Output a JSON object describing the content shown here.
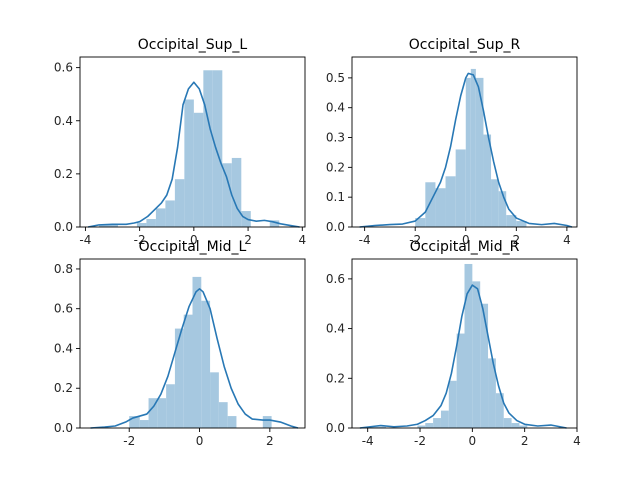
{
  "colors": {
    "bar": "#a6c8e0",
    "kde": "#2878b5",
    "axis": "#000000"
  },
  "chart_data": [
    {
      "type": "bar",
      "title": "Occipital_Sup_L",
      "xlim": [
        -4.2,
        4.1
      ],
      "ylim": [
        0,
        0.64
      ],
      "xticks": [
        -4,
        -2,
        0,
        2,
        4
      ],
      "yticks": [
        0.0,
        0.2,
        0.4,
        0.6
      ],
      "ytick_decimals": 1,
      "grid": false,
      "bins": [
        {
          "x0": -3.5,
          "x1": -3.15,
          "y": 0.008
        },
        {
          "x0": -3.15,
          "x1": -2.8,
          "y": 0.008
        },
        {
          "x0": -2.8,
          "x1": -2.45,
          "y": 0.0
        },
        {
          "x0": -2.45,
          "x1": -2.1,
          "y": 0.0
        },
        {
          "x0": -2.1,
          "x1": -1.75,
          "y": 0.015
        },
        {
          "x0": -1.75,
          "x1": -1.4,
          "y": 0.03
        },
        {
          "x0": -1.4,
          "x1": -1.05,
          "y": 0.07
        },
        {
          "x0": -1.05,
          "x1": -0.7,
          "y": 0.1
        },
        {
          "x0": -0.7,
          "x1": -0.35,
          "y": 0.18
        },
        {
          "x0": -0.35,
          "x1": 0.0,
          "y": 0.48
        },
        {
          "x0": 0.0,
          "x1": 0.35,
          "y": 0.43
        },
        {
          "x0": 0.35,
          "x1": 0.7,
          "y": 0.59
        },
        {
          "x0": 0.7,
          "x1": 1.05,
          "y": 0.59
        },
        {
          "x0": 1.05,
          "x1": 1.4,
          "y": 0.24
        },
        {
          "x0": 1.4,
          "x1": 1.75,
          "y": 0.26
        },
        {
          "x0": 1.75,
          "x1": 2.1,
          "y": 0.06
        },
        {
          "x0": 2.1,
          "x1": 2.45,
          "y": 0.0
        },
        {
          "x0": 2.45,
          "x1": 2.8,
          "y": 0.0
        },
        {
          "x0": 2.8,
          "x1": 3.15,
          "y": 0.025
        }
      ],
      "kde": [
        [
          -3.9,
          0.0
        ],
        [
          -3.5,
          0.008
        ],
        [
          -3.0,
          0.01
        ],
        [
          -2.5,
          0.01
        ],
        [
          -2.2,
          0.015
        ],
        [
          -2.0,
          0.02
        ],
        [
          -1.7,
          0.04
        ],
        [
          -1.5,
          0.06
        ],
        [
          -1.2,
          0.09
        ],
        [
          -1.0,
          0.12
        ],
        [
          -0.8,
          0.18
        ],
        [
          -0.6,
          0.3
        ],
        [
          -0.5,
          0.38
        ],
        [
          -0.4,
          0.46
        ],
        [
          -0.2,
          0.52
        ],
        [
          0.0,
          0.545
        ],
        [
          0.2,
          0.52
        ],
        [
          0.4,
          0.46
        ],
        [
          0.6,
          0.37
        ],
        [
          0.8,
          0.3
        ],
        [
          1.0,
          0.24
        ],
        [
          1.2,
          0.19
        ],
        [
          1.4,
          0.12
        ],
        [
          1.6,
          0.07
        ],
        [
          1.8,
          0.04
        ],
        [
          2.0,
          0.028
        ],
        [
          2.3,
          0.022
        ],
        [
          2.6,
          0.025
        ],
        [
          2.9,
          0.02
        ],
        [
          3.2,
          0.012
        ],
        [
          3.6,
          0.005
        ],
        [
          3.9,
          0.0
        ]
      ]
    },
    {
      "type": "bar",
      "title": "Occipital_Sup_R",
      "xlim": [
        -4.5,
        4.4
      ],
      "ylim": [
        0,
        0.57
      ],
      "xticks": [
        -4,
        -2,
        0,
        2,
        4
      ],
      "yticks": [
        0.0,
        0.1,
        0.2,
        0.3,
        0.4,
        0.5
      ],
      "ytick_decimals": 1,
      "grid": false,
      "bins": [
        {
          "x0": -4.0,
          "x1": -3.6,
          "y": 0.0
        },
        {
          "x0": -3.6,
          "x1": -3.2,
          "y": 0.0
        },
        {
          "x0": -3.2,
          "x1": -2.8,
          "y": 0.0
        },
        {
          "x0": -2.8,
          "x1": -2.4,
          "y": 0.0
        },
        {
          "x0": -2.4,
          "x1": -2.0,
          "y": 0.0
        },
        {
          "x0": -2.0,
          "x1": -1.6,
          "y": 0.03
        },
        {
          "x0": -1.6,
          "x1": -1.2,
          "y": 0.15
        },
        {
          "x0": -1.2,
          "x1": -0.8,
          "y": 0.13
        },
        {
          "x0": -0.8,
          "x1": -0.4,
          "y": 0.17
        },
        {
          "x0": -0.4,
          "x1": 0.0,
          "y": 0.26
        },
        {
          "x0": 0.0,
          "x1": 0.2,
          "y": 0.5
        },
        {
          "x0": 0.2,
          "x1": 0.4,
          "y": 0.53
        },
        {
          "x0": 0.4,
          "x1": 0.7,
          "y": 0.5
        },
        {
          "x0": 0.7,
          "x1": 1.0,
          "y": 0.31
        },
        {
          "x0": 1.0,
          "x1": 1.3,
          "y": 0.16
        },
        {
          "x0": 1.3,
          "x1": 1.6,
          "y": 0.12
        },
        {
          "x0": 1.6,
          "x1": 2.0,
          "y": 0.04
        },
        {
          "x0": 2.0,
          "x1": 2.4,
          "y": 0.02
        }
      ],
      "kde": [
        [
          -4.2,
          0.0
        ],
        [
          -3.6,
          0.005
        ],
        [
          -3.0,
          0.008
        ],
        [
          -2.5,
          0.01
        ],
        [
          -2.0,
          0.02
        ],
        [
          -1.6,
          0.05
        ],
        [
          -1.3,
          0.1
        ],
        [
          -1.0,
          0.15
        ],
        [
          -0.8,
          0.2
        ],
        [
          -0.6,
          0.27
        ],
        [
          -0.4,
          0.36
        ],
        [
          -0.2,
          0.44
        ],
        [
          0.0,
          0.5
        ],
        [
          0.1,
          0.515
        ],
        [
          0.3,
          0.51
        ],
        [
          0.5,
          0.47
        ],
        [
          0.7,
          0.39
        ],
        [
          0.9,
          0.3
        ],
        [
          1.1,
          0.22
        ],
        [
          1.3,
          0.15
        ],
        [
          1.5,
          0.1
        ],
        [
          1.7,
          0.06
        ],
        [
          2.0,
          0.03
        ],
        [
          2.5,
          0.012
        ],
        [
          3.0,
          0.008
        ],
        [
          3.5,
          0.012
        ],
        [
          4.0,
          0.005
        ],
        [
          4.2,
          0.0
        ]
      ]
    },
    {
      "type": "bar",
      "title": "Occipital_Mid_L",
      "xlim": [
        -3.4,
        3.0
      ],
      "ylim": [
        0,
        0.85
      ],
      "xticks": [
        -2,
        0,
        2
      ],
      "yticks": [
        0.0,
        0.2,
        0.4,
        0.6,
        0.8
      ],
      "ytick_decimals": 1,
      "grid": false,
      "bins": [
        {
          "x0": -2.0,
          "x1": -1.7,
          "y": 0.06
        },
        {
          "x0": -1.7,
          "x1": -1.45,
          "y": 0.04
        },
        {
          "x0": -1.45,
          "x1": -1.2,
          "y": 0.15
        },
        {
          "x0": -1.2,
          "x1": -0.95,
          "y": 0.15
        },
        {
          "x0": -0.95,
          "x1": -0.7,
          "y": 0.22
        },
        {
          "x0": -0.7,
          "x1": -0.45,
          "y": 0.5
        },
        {
          "x0": -0.45,
          "x1": -0.2,
          "y": 0.57
        },
        {
          "x0": -0.2,
          "x1": 0.05,
          "y": 0.76
        },
        {
          "x0": 0.05,
          "x1": 0.3,
          "y": 0.64
        },
        {
          "x0": 0.3,
          "x1": 0.55,
          "y": 0.28
        },
        {
          "x0": 0.55,
          "x1": 0.8,
          "y": 0.13
        },
        {
          "x0": 0.8,
          "x1": 1.05,
          "y": 0.06
        },
        {
          "x0": 1.05,
          "x1": 1.3,
          "y": 0.0
        },
        {
          "x0": 1.3,
          "x1": 1.55,
          "y": 0.0
        },
        {
          "x0": 1.55,
          "x1": 1.8,
          "y": 0.0
        },
        {
          "x0": 1.8,
          "x1": 2.05,
          "y": 0.06
        },
        {
          "x0": 2.05,
          "x1": 2.3,
          "y": 0.0
        }
      ],
      "kde": [
        [
          -3.1,
          0.0
        ],
        [
          -2.7,
          0.005
        ],
        [
          -2.4,
          0.01
        ],
        [
          -2.1,
          0.03
        ],
        [
          -1.9,
          0.05
        ],
        [
          -1.7,
          0.06
        ],
        [
          -1.5,
          0.07
        ],
        [
          -1.3,
          0.11
        ],
        [
          -1.1,
          0.17
        ],
        [
          -0.9,
          0.26
        ],
        [
          -0.7,
          0.38
        ],
        [
          -0.5,
          0.5
        ],
        [
          -0.3,
          0.61
        ],
        [
          -0.1,
          0.685
        ],
        [
          0.0,
          0.7
        ],
        [
          0.1,
          0.685
        ],
        [
          0.3,
          0.6
        ],
        [
          0.5,
          0.45
        ],
        [
          0.7,
          0.31
        ],
        [
          0.9,
          0.2
        ],
        [
          1.1,
          0.12
        ],
        [
          1.3,
          0.07
        ],
        [
          1.5,
          0.045
        ],
        [
          1.8,
          0.04
        ],
        [
          2.0,
          0.04
        ],
        [
          2.3,
          0.03
        ],
        [
          2.6,
          0.01
        ],
        [
          2.8,
          0.0
        ]
      ]
    },
    {
      "type": "bar",
      "title": "Occipital_Mid_R",
      "xlim": [
        -4.6,
        4.0
      ],
      "ylim": [
        0,
        0.68
      ],
      "xticks": [
        -4,
        -2,
        0,
        2,
        4
      ],
      "yticks": [
        0.0,
        0.2,
        0.4,
        0.6
      ],
      "ytick_decimals": 1,
      "grid": false,
      "bins": [
        {
          "x0": -3.9,
          "x1": -3.6,
          "y": 0.005
        },
        {
          "x0": -3.6,
          "x1": -3.3,
          "y": 0.005
        },
        {
          "x0": -3.3,
          "x1": -3.0,
          "y": 0.0
        },
        {
          "x0": -3.0,
          "x1": -2.7,
          "y": 0.0
        },
        {
          "x0": -2.7,
          "x1": -2.4,
          "y": 0.0
        },
        {
          "x0": -2.4,
          "x1": -2.1,
          "y": 0.0
        },
        {
          "x0": -2.1,
          "x1": -1.8,
          "y": 0.01
        },
        {
          "x0": -1.8,
          "x1": -1.5,
          "y": 0.02
        },
        {
          "x0": -1.5,
          "x1": -1.2,
          "y": 0.04
        },
        {
          "x0": -1.2,
          "x1": -0.9,
          "y": 0.07
        },
        {
          "x0": -0.9,
          "x1": -0.6,
          "y": 0.19
        },
        {
          "x0": -0.6,
          "x1": -0.3,
          "y": 0.38
        },
        {
          "x0": -0.3,
          "x1": 0.0,
          "y": 0.66
        },
        {
          "x0": 0.0,
          "x1": 0.3,
          "y": 0.59
        },
        {
          "x0": 0.3,
          "x1": 0.6,
          "y": 0.5
        },
        {
          "x0": 0.6,
          "x1": 0.9,
          "y": 0.28
        },
        {
          "x0": 0.9,
          "x1": 1.2,
          "y": 0.14
        },
        {
          "x0": 1.2,
          "x1": 1.5,
          "y": 0.04
        },
        {
          "x0": 1.5,
          "x1": 1.8,
          "y": 0.02
        },
        {
          "x0": 1.8,
          "x1": 2.1,
          "y": 0.01
        }
      ],
      "kde": [
        [
          -4.3,
          0.0
        ],
        [
          -3.9,
          0.005
        ],
        [
          -3.5,
          0.01
        ],
        [
          -3.0,
          0.005
        ],
        [
          -2.5,
          0.008
        ],
        [
          -2.1,
          0.015
        ],
        [
          -1.8,
          0.03
        ],
        [
          -1.5,
          0.05
        ],
        [
          -1.2,
          0.09
        ],
        [
          -1.0,
          0.14
        ],
        [
          -0.8,
          0.22
        ],
        [
          -0.6,
          0.33
        ],
        [
          -0.4,
          0.45
        ],
        [
          -0.2,
          0.54
        ],
        [
          0.0,
          0.575
        ],
        [
          0.2,
          0.56
        ],
        [
          0.4,
          0.48
        ],
        [
          0.6,
          0.37
        ],
        [
          0.8,
          0.26
        ],
        [
          1.0,
          0.17
        ],
        [
          1.2,
          0.1
        ],
        [
          1.4,
          0.06
        ],
        [
          1.7,
          0.03
        ],
        [
          2.0,
          0.015
        ],
        [
          2.5,
          0.008
        ],
        [
          3.0,
          0.012
        ],
        [
          3.3,
          0.006
        ],
        [
          3.6,
          0.0
        ]
      ]
    }
  ]
}
